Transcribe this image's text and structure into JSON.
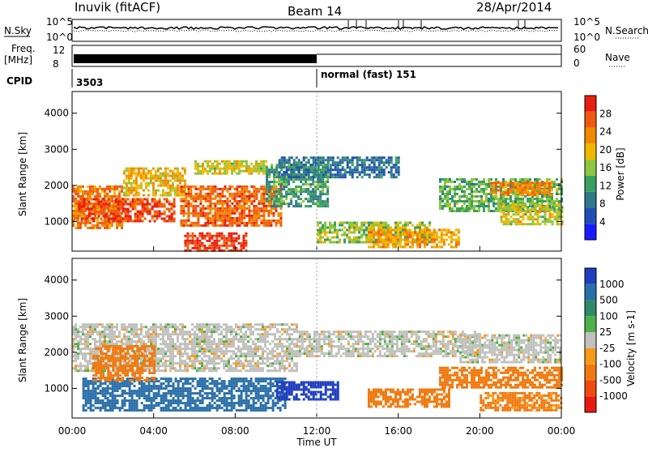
{
  "header": {
    "station": "Inuvik (fitACF)",
    "beam": "Beam 14",
    "date": "28/Apr/2014"
  },
  "top_panels": {
    "nsky_label": "N.Sky",
    "nsearch_label": "N.Search",
    "nsky_ticks": [
      "10^5",
      "10^0"
    ],
    "nsearch_ticks": [
      "10^5",
      "10^0"
    ],
    "freq_label": "Freq.",
    "freq_unit": "[MHz]",
    "freq_ticks": [
      "12",
      "8"
    ],
    "nave_label": "Nave",
    "nave_ticks": [
      "60",
      "0"
    ],
    "cpid_label": "CPID",
    "cpid_values": [
      "3503",
      "normal (fast) 151"
    ]
  },
  "colors": {
    "power": [
      "#1a1aff",
      "#1f4fb4",
      "#2f7a8a",
      "#3aa060",
      "#8ec63f",
      "#f2b800",
      "#f08a00",
      "#f05a10",
      "#e81e10"
    ],
    "velocity_pos": [
      "#1f3fbf",
      "#2a6fa8",
      "#2f8a6a",
      "#4fb048"
    ],
    "velocity_neutral": "#c0c0bc",
    "velocity_neg": [
      "#f59a1a",
      "#f07a10",
      "#ef4a10",
      "#e81a10"
    ]
  },
  "chart_data": [
    {
      "type": "heatmap",
      "name": "power",
      "ylabel": "Slant Range [km]",
      "yticks": [
        "4000",
        "3000",
        "2000",
        "1000"
      ],
      "ylim": [
        180,
        4600
      ],
      "xlim": [
        0,
        24
      ],
      "colorbar": {
        "label": "Power [dB]",
        "ticks": [
          "28",
          "24",
          "20",
          "16",
          "12",
          "8",
          "4"
        ],
        "range": [
          0,
          32
        ]
      },
      "regions": [
        {
          "x": [
            0.0,
            2.4
          ],
          "y": [
            800,
            2000
          ],
          "value": 24
        },
        {
          "x": [
            0.3,
            5.0
          ],
          "y": [
            1000,
            1650
          ],
          "value": 28
        },
        {
          "x": [
            2.5,
            5.5
          ],
          "y": [
            1700,
            2500
          ],
          "value": 20
        },
        {
          "x": [
            5.3,
            10.3
          ],
          "y": [
            900,
            2000
          ],
          "value": 26
        },
        {
          "x": [
            5.5,
            8.5
          ],
          "y": [
            220,
            700
          ],
          "value": 29
        },
        {
          "x": [
            6.0,
            9.5
          ],
          "y": [
            2300,
            2700
          ],
          "value": 18
        },
        {
          "x": [
            9.5,
            12.5
          ],
          "y": [
            1400,
            2600
          ],
          "value": 12
        },
        {
          "x": [
            10.0,
            16.0
          ],
          "y": [
            2200,
            2800
          ],
          "value": 8
        },
        {
          "x": [
            12.0,
            17.5
          ],
          "y": [
            400,
            1000
          ],
          "value": 16
        },
        {
          "x": [
            14.5,
            19.0
          ],
          "y": [
            300,
            800
          ],
          "value": 22
        },
        {
          "x": [
            18.0,
            24.0
          ],
          "y": [
            1300,
            2200
          ],
          "value": 14
        },
        {
          "x": [
            20.5,
            23.5
          ],
          "y": [
            1700,
            2100
          ],
          "value": 24
        },
        {
          "x": [
            21.0,
            24.0
          ],
          "y": [
            900,
            1500
          ],
          "value": 18
        }
      ]
    },
    {
      "type": "heatmap",
      "name": "velocity",
      "ylabel": "Slant Range [km]",
      "yticks": [
        "4000",
        "3000",
        "2000",
        "1000"
      ],
      "ylim": [
        180,
        4600
      ],
      "xlim": [
        0,
        24
      ],
      "xlabel": "Time UT",
      "xticks": [
        "00:00",
        "04:00",
        "08:00",
        "12:00",
        "16:00",
        "20:00",
        "00:00"
      ],
      "colorbar": {
        "label": "Velocity [m s-1]",
        "ticks": [
          "1000",
          "500",
          "100",
          "25",
          "-25",
          "-100",
          "-500",
          "-1000"
        ]
      },
      "regions": [
        {
          "x": [
            0.0,
            11.0
          ],
          "y": [
            1500,
            2800
          ],
          "value": 0
        },
        {
          "x": [
            0.5,
            10.5
          ],
          "y": [
            400,
            1300
          ],
          "value": 150
        },
        {
          "x": [
            1.0,
            4.0
          ],
          "y": [
            1200,
            2200
          ],
          "value": -150
        },
        {
          "x": [
            10.0,
            13.0
          ],
          "y": [
            700,
            1200
          ],
          "value": 600
        },
        {
          "x": [
            11.0,
            20.0
          ],
          "y": [
            1900,
            2600
          ],
          "value": 0
        },
        {
          "x": [
            14.5,
            18.5
          ],
          "y": [
            500,
            1000
          ],
          "value": -300
        },
        {
          "x": [
            18.0,
            24.0
          ],
          "y": [
            1000,
            1600
          ],
          "value": -300
        },
        {
          "x": [
            19.0,
            24.0
          ],
          "y": [
            1700,
            2500
          ],
          "value": 0
        },
        {
          "x": [
            20.0,
            24.0
          ],
          "y": [
            400,
            900
          ],
          "value": -120
        }
      ]
    }
  ]
}
